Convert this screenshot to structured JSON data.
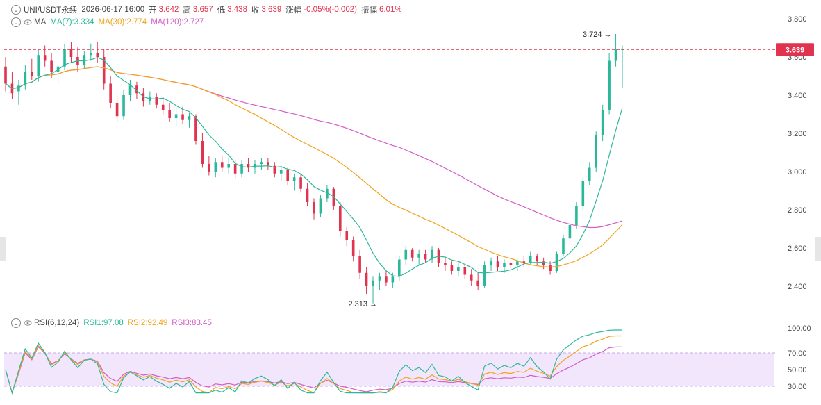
{
  "header": {
    "symbol": "UNI/USDT永续",
    "datetime": "2026-06-17 16:00",
    "open_label": "开",
    "open_value": "3.642",
    "high_label": "高",
    "high_value": "3.657",
    "low_label": "低",
    "low_value": "3.438",
    "close_label": "收",
    "close_value": "3.639",
    "change_label": "涨幅",
    "change_value": "-0.05%(-0.002)",
    "amp_label": "振幅",
    "amp_value": "6.01%"
  },
  "ma_legend": {
    "name": "MA",
    "ma7": "MA(7):3.334",
    "ma30": "MA(30):2.774",
    "ma120": "MA(120):2.727"
  },
  "rsi_legend": {
    "name": "RSI(6,12,24)",
    "rsi1": "RSI1:97.08",
    "rsi2": "RSI2:92.49",
    "rsi3": "RSI3:83.45"
  },
  "colors": {
    "up": "#2bb89a",
    "down": "#e0334e",
    "ma7": "#2bb89a",
    "ma30": "#f2a21b",
    "ma120": "#d55bc7",
    "rsi_band": "#f1e6fb"
  },
  "chart_data": [
    {
      "type": "candlestick",
      "y_ticks": [
        "3.800",
        "3.600",
        "3.400",
        "3.200",
        "3.000",
        "2.800",
        "2.600",
        "2.400"
      ],
      "ylim": [
        2.28,
        3.88
      ],
      "last_price": "3.639",
      "max_marker": "3.724",
      "min_marker": "2.313",
      "candles_ohlc": [
        [
          3.55,
          3.6,
          3.42,
          3.46
        ],
        [
          3.46,
          3.52,
          3.38,
          3.41
        ],
        [
          3.42,
          3.48,
          3.35,
          3.45
        ],
        [
          3.45,
          3.56,
          3.43,
          3.52
        ],
        [
          3.52,
          3.59,
          3.48,
          3.5
        ],
        [
          3.5,
          3.64,
          3.47,
          3.61
        ],
        [
          3.61,
          3.66,
          3.55,
          3.58
        ],
        [
          3.58,
          3.62,
          3.49,
          3.52
        ],
        [
          3.52,
          3.57,
          3.46,
          3.55
        ],
        [
          3.55,
          3.67,
          3.53,
          3.64
        ],
        [
          3.64,
          3.68,
          3.57,
          3.6
        ],
        [
          3.6,
          3.65,
          3.52,
          3.56
        ],
        [
          3.56,
          3.63,
          3.54,
          3.61
        ],
        [
          3.61,
          3.67,
          3.58,
          3.62
        ],
        [
          3.62,
          3.68,
          3.57,
          3.6
        ],
        [
          3.6,
          3.64,
          3.43,
          3.46
        ],
        [
          3.46,
          3.5,
          3.33,
          3.36
        ],
        [
          3.36,
          3.4,
          3.26,
          3.29
        ],
        [
          3.29,
          3.43,
          3.27,
          3.4
        ],
        [
          3.4,
          3.48,
          3.37,
          3.45
        ],
        [
          3.45,
          3.47,
          3.38,
          3.41
        ],
        [
          3.41,
          3.44,
          3.34,
          3.37
        ],
        [
          3.37,
          3.42,
          3.35,
          3.39
        ],
        [
          3.39,
          3.41,
          3.33,
          3.35
        ],
        [
          3.35,
          3.39,
          3.3,
          3.32
        ],
        [
          3.32,
          3.36,
          3.26,
          3.28
        ],
        [
          3.28,
          3.33,
          3.24,
          3.3
        ],
        [
          3.3,
          3.34,
          3.25,
          3.27
        ],
        [
          3.27,
          3.31,
          3.23,
          3.29
        ],
        [
          3.29,
          3.3,
          3.14,
          3.16
        ],
        [
          3.16,
          3.2,
          3.02,
          3.04
        ],
        [
          3.04,
          3.08,
          2.98,
          3.0
        ],
        [
          3.0,
          3.07,
          2.97,
          3.05
        ],
        [
          3.05,
          3.08,
          3.0,
          3.02
        ],
        [
          3.02,
          3.07,
          2.99,
          3.04
        ],
        [
          3.04,
          3.06,
          2.96,
          2.99
        ],
        [
          2.99,
          3.06,
          2.97,
          3.04
        ],
        [
          3.04,
          3.07,
          3.0,
          3.02
        ],
        [
          3.02,
          3.06,
          2.99,
          3.04
        ],
        [
          3.04,
          3.07,
          3.01,
          3.05
        ],
        [
          3.05,
          3.07,
          3.01,
          3.03
        ],
        [
          3.03,
          3.05,
          2.97,
          2.99
        ],
        [
          2.99,
          3.03,
          2.95,
          3.01
        ],
        [
          3.01,
          3.02,
          2.93,
          2.95
        ],
        [
          2.95,
          2.99,
          2.9,
          2.97
        ],
        [
          2.97,
          2.99,
          2.89,
          2.91
        ],
        [
          2.91,
          2.94,
          2.82,
          2.84
        ],
        [
          2.84,
          2.86,
          2.75,
          2.78
        ],
        [
          2.78,
          2.88,
          2.76,
          2.86
        ],
        [
          2.86,
          2.93,
          2.84,
          2.91
        ],
        [
          2.91,
          2.92,
          2.8,
          2.82
        ],
        [
          2.82,
          2.84,
          2.66,
          2.69
        ],
        [
          2.69,
          2.71,
          2.61,
          2.64
        ],
        [
          2.64,
          2.66,
          2.53,
          2.56
        ],
        [
          2.56,
          2.59,
          2.44,
          2.47
        ],
        [
          2.47,
          2.5,
          2.36,
          2.4
        ],
        [
          2.4,
          2.45,
          2.31,
          2.43
        ],
        [
          2.43,
          2.47,
          2.38,
          2.45
        ],
        [
          2.45,
          2.48,
          2.4,
          2.42
        ],
        [
          2.42,
          2.47,
          2.39,
          2.45
        ],
        [
          2.45,
          2.56,
          2.43,
          2.54
        ],
        [
          2.54,
          2.61,
          2.51,
          2.59
        ],
        [
          2.59,
          2.6,
          2.53,
          2.55
        ],
        [
          2.55,
          2.59,
          2.51,
          2.57
        ],
        [
          2.57,
          2.59,
          2.52,
          2.54
        ],
        [
          2.54,
          2.61,
          2.52,
          2.59
        ],
        [
          2.59,
          2.6,
          2.5,
          2.52
        ],
        [
          2.52,
          2.55,
          2.48,
          2.51
        ],
        [
          2.51,
          2.53,
          2.46,
          2.48
        ],
        [
          2.48,
          2.52,
          2.45,
          2.5
        ],
        [
          2.5,
          2.51,
          2.44,
          2.46
        ],
        [
          2.46,
          2.49,
          2.4,
          2.43
        ],
        [
          2.43,
          2.47,
          2.38,
          2.4
        ],
        [
          2.4,
          2.53,
          2.39,
          2.51
        ],
        [
          2.51,
          2.55,
          2.48,
          2.53
        ],
        [
          2.53,
          2.56,
          2.48,
          2.5
        ],
        [
          2.5,
          2.54,
          2.47,
          2.52
        ],
        [
          2.52,
          2.55,
          2.49,
          2.51
        ],
        [
          2.51,
          2.54,
          2.48,
          2.53
        ],
        [
          2.53,
          2.56,
          2.5,
          2.52
        ],
        [
          2.52,
          2.58,
          2.51,
          2.56
        ],
        [
          2.56,
          2.57,
          2.51,
          2.53
        ],
        [
          2.53,
          2.55,
          2.49,
          2.51
        ],
        [
          2.51,
          2.53,
          2.46,
          2.48
        ],
        [
          2.48,
          2.58,
          2.47,
          2.57
        ],
        [
          2.57,
          2.67,
          2.56,
          2.65
        ],
        [
          2.65,
          2.74,
          2.63,
          2.72
        ],
        [
          2.72,
          2.84,
          2.7,
          2.82
        ],
        [
          2.82,
          2.97,
          2.8,
          2.95
        ],
        [
          2.95,
          3.05,
          2.93,
          3.02
        ],
        [
          3.02,
          3.21,
          3.0,
          3.19
        ],
        [
          3.19,
          3.35,
          3.16,
          3.32
        ],
        [
          3.32,
          3.62,
          3.3,
          3.58
        ],
        [
          3.58,
          3.72,
          3.55,
          3.64
        ],
        [
          3.64,
          3.66,
          3.44,
          3.64
        ]
      ]
    },
    {
      "type": "line",
      "y_ticks": [
        "100.00",
        "70.00",
        "50.00",
        "30.00"
      ],
      "ylim": [
        30,
        100
      ],
      "band": [
        30,
        70
      ],
      "series_names": [
        "RSI1",
        "RSI2",
        "RSI3"
      ]
    }
  ]
}
